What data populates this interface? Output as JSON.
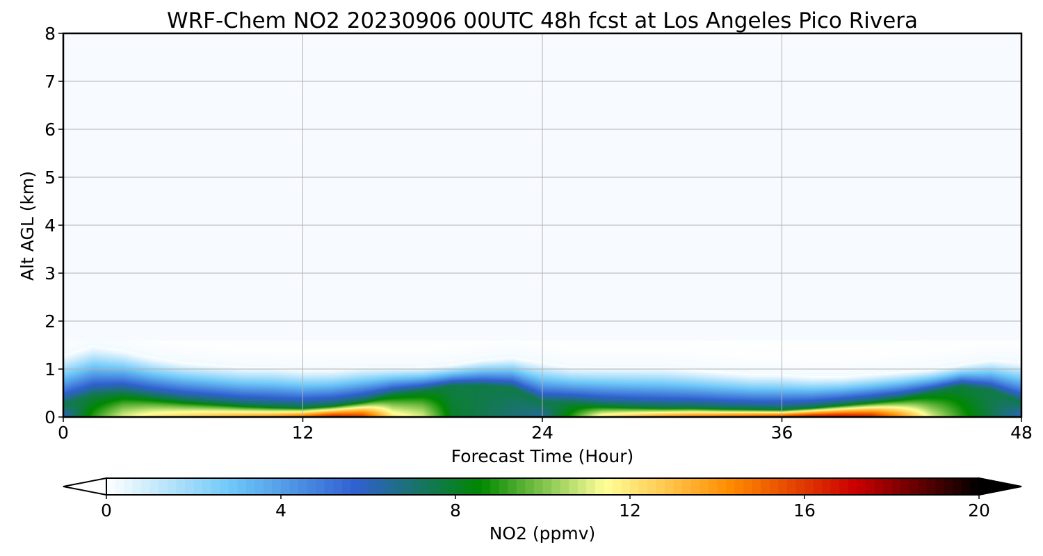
{
  "chart_data": {
    "type": "heatmap",
    "title": "WRF-Chem NO2  20230906 00UTC 48h fcst at Los Angeles Pico Rivera",
    "xlabel": "Forecast Time (Hour)",
    "ylabel": "Alt AGL (km)",
    "xlim": [
      0,
      48
    ],
    "ylim": [
      0,
      8
    ],
    "x_ticks": [
      "0",
      "12",
      "24",
      "36",
      "48"
    ],
    "y_ticks": [
      "0",
      "1",
      "2",
      "3",
      "4",
      "5",
      "6",
      "7",
      "8"
    ],
    "grid": true,
    "colorbar": {
      "label": "NO2  (ppmv)",
      "range": [
        0,
        20
      ],
      "ticks": [
        "0",
        "4",
        "8",
        "12",
        "16",
        "20"
      ],
      "extend": "both",
      "colors": [
        "#ffffff",
        "#6ec8f8",
        "#3060d0",
        "#008800",
        "#ffff99",
        "#ff8c00",
        "#cc0000",
        "#000000"
      ]
    },
    "profiles": {
      "hours": [
        0,
        1.5,
        3,
        4.5,
        6,
        7.5,
        9,
        10.5,
        12,
        13.5,
        15,
        16.5,
        18,
        19.5,
        21,
        22.5,
        24,
        25.5,
        27,
        28.5,
        30,
        31.5,
        33,
        34.5,
        36,
        37.5,
        39,
        40.5,
        42,
        43.5,
        45,
        46.5,
        48
      ],
      "surface_ppmv": [
        6,
        9,
        11,
        12,
        12.5,
        13,
        13.5,
        14,
        15,
        16.5,
        16,
        12,
        11,
        8,
        7.5,
        7,
        6.5,
        9,
        12,
        13,
        14,
        14.5,
        15,
        15.5,
        16,
        17,
        17,
        16.5,
        14,
        11,
        9,
        7.5,
        6
      ],
      "plume_top_km": [
        1.3,
        1.5,
        1.4,
        1.25,
        1.15,
        1.1,
        1.05,
        1.05,
        1.0,
        1.0,
        1.05,
        1.05,
        1.05,
        1.1,
        1.2,
        1.25,
        1.15,
        1.05,
        1.05,
        1.05,
        1.05,
        1.0,
        0.95,
        0.9,
        0.9,
        0.85,
        0.85,
        0.9,
        0.95,
        1.0,
        1.1,
        1.2,
        1.15
      ],
      "core_km": [
        0.25,
        0.45,
        0.5,
        0.42,
        0.35,
        0.3,
        0.25,
        0.22,
        0.2,
        0.24,
        0.33,
        0.48,
        0.55,
        0.65,
        0.65,
        0.6,
        0.3,
        0.3,
        0.25,
        0.22,
        0.2,
        0.2,
        0.18,
        0.17,
        0.16,
        0.2,
        0.26,
        0.32,
        0.4,
        0.52,
        0.65,
        0.55,
        0.3
      ]
    }
  }
}
